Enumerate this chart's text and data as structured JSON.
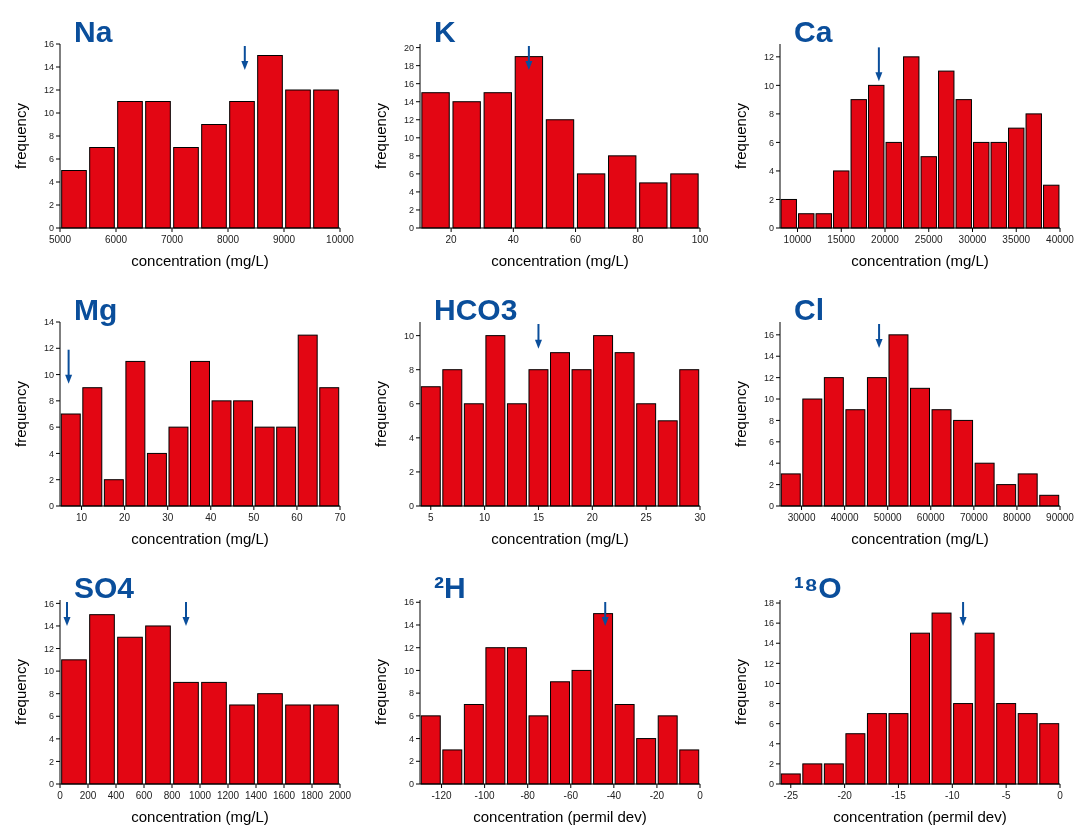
{
  "chart_data": [
    {
      "type": "histogram",
      "title": "Na",
      "xlabel": "concentration (mg/L)",
      "ylabel": "frequency",
      "bins": [
        5000,
        5500,
        6000,
        6500,
        7000,
        7500,
        8000,
        8500,
        9000,
        9500,
        10000
      ],
      "values": [
        5,
        7,
        11,
        11,
        7,
        9,
        11,
        15,
        12,
        12
      ],
      "color": "#e30613",
      "xlim": [
        5000,
        10000
      ],
      "xticks": [
        5000,
        6000,
        7000,
        8000,
        9000,
        10000
      ],
      "ylim": [
        0,
        16
      ],
      "yticks": [
        0,
        2,
        4,
        6,
        8,
        10,
        12,
        14,
        16
      ],
      "ref_lines": [
        {
          "axis": "x",
          "value": 8300,
          "color": "#0a4e9b"
        }
      ]
    },
    {
      "type": "histogram",
      "title": "K",
      "xlabel": "concentration (mg/L)",
      "ylabel": "frequency",
      "bins": [
        10,
        20,
        30,
        40,
        50,
        60,
        70,
        80,
        90,
        100
      ],
      "values": [
        15,
        14,
        15,
        19,
        12,
        6,
        8,
        5,
        6
      ],
      "color": "#e30613",
      "xlim": [
        10,
        100
      ],
      "xticks": [
        20,
        40,
        60,
        80,
        100
      ],
      "ylim": [
        0,
        20.4
      ],
      "yticks": [
        0,
        2,
        4,
        6,
        8,
        10,
        12,
        14,
        16,
        18,
        20
      ],
      "ref_lines": [
        {
          "axis": "x",
          "value": 45,
          "color": "#0a4e9b"
        }
      ]
    },
    {
      "type": "histogram",
      "title": "Ca",
      "xlabel": "concentration (mg/L)",
      "ylabel": "frequency",
      "bins": [
        8000,
        10000,
        12000,
        14000,
        16000,
        18000,
        20000,
        22000,
        24000,
        26000,
        28000,
        30000,
        32000,
        34000,
        36000,
        38000,
        40000
      ],
      "values": [
        2,
        1,
        1,
        4,
        9,
        10,
        6,
        12,
        5,
        11,
        9,
        6,
        6,
        7,
        8,
        3
      ],
      "color": "#e30613",
      "xlim": [
        8000,
        40000
      ],
      "xticks": [
        10000,
        15000,
        20000,
        25000,
        30000,
        35000,
        40000
      ],
      "ylim": [
        0,
        12.9
      ],
      "yticks": [
        0,
        2,
        4,
        6,
        8,
        10,
        12
      ],
      "ref_lines": [
        {
          "axis": "x",
          "value": 19300,
          "color": "#0a4e9b"
        }
      ]
    },
    {
      "type": "histogram",
      "title": "Mg",
      "xlabel": "concentration (mg/L)",
      "ylabel": "frequency",
      "bins": [
        5,
        10,
        15,
        20,
        25,
        30,
        35,
        40,
        45,
        50,
        55,
        60,
        65,
        70
      ],
      "values": [
        7,
        9,
        2,
        11,
        4,
        6,
        11,
        8,
        8,
        6,
        6,
        13,
        9
      ],
      "color": "#e30613",
      "xlim": [
        5,
        70
      ],
      "xticks": [
        10,
        20,
        30,
        40,
        50,
        60,
        70
      ],
      "ylim": [
        0,
        14
      ],
      "yticks": [
        0,
        2,
        4,
        6,
        8,
        10,
        12,
        14
      ],
      "ref_lines": [
        {
          "axis": "x",
          "value": 7,
          "color": "#0a4e9b"
        }
      ]
    },
    {
      "type": "histogram",
      "title": "HCO3",
      "xlabel": "concentration (mg/L)",
      "ylabel": "frequency",
      "bins": [
        4,
        6,
        8,
        10,
        12,
        14,
        16,
        18,
        20,
        22,
        24,
        26,
        28,
        30
      ],
      "values": [
        7,
        8,
        6,
        10,
        6,
        8,
        9,
        8,
        10,
        9,
        6,
        5,
        8
      ],
      "color": "#e30613",
      "xlim": [
        4,
        30
      ],
      "xticks": [
        5,
        10,
        15,
        20,
        25,
        30
      ],
      "ylim": [
        0,
        10.8
      ],
      "yticks": [
        0,
        2,
        4,
        6,
        8,
        10
      ],
      "ref_lines": [
        {
          "axis": "x",
          "value": 15,
          "color": "#0a4e9b"
        }
      ]
    },
    {
      "type": "histogram",
      "title": "Cl",
      "xlabel": "concentration (mg/L)",
      "ylabel": "frequency",
      "bins": [
        25000,
        30000,
        35000,
        40000,
        45000,
        50000,
        55000,
        60000,
        65000,
        70000,
        75000,
        80000,
        85000,
        90000
      ],
      "values": [
        3,
        10,
        12,
        9,
        12,
        16,
        11,
        9,
        8,
        4,
        2,
        3,
        1
      ],
      "color": "#e30613",
      "xlim": [
        25000,
        90000
      ],
      "xticks": [
        30000,
        40000,
        50000,
        60000,
        70000,
        80000,
        90000
      ],
      "ylim": [
        0,
        17.2
      ],
      "yticks": [
        0,
        2,
        4,
        6,
        8,
        10,
        12,
        14,
        16
      ],
      "ref_lines": [
        {
          "axis": "x",
          "value": 48000,
          "color": "#0a4e9b"
        }
      ]
    },
    {
      "type": "histogram",
      "title": "SO4",
      "xlabel": "concentration (mg/L)",
      "ylabel": "frequency",
      "bins": [
        0,
        200,
        400,
        600,
        800,
        1000,
        1200,
        1400,
        1600,
        1800,
        2000
      ],
      "values": [
        11,
        15,
        13,
        14,
        9,
        9,
        7,
        8,
        7,
        7
      ],
      "color": "#e30613",
      "xlim": [
        0,
        2000
      ],
      "xticks": [
        0,
        200,
        400,
        600,
        800,
        1000,
        1200,
        1400,
        1600,
        1800,
        2000
      ],
      "ylim": [
        0,
        16.3
      ],
      "yticks": [
        0,
        2,
        4,
        6,
        8,
        10,
        12,
        14,
        16
      ],
      "ref_lines": [
        {
          "axis": "x",
          "value": 50,
          "color": "#0a4e9b"
        },
        {
          "axis": "x",
          "value": 900,
          "color": "#0a4e9b"
        }
      ]
    },
    {
      "type": "histogram",
      "title": "²H",
      "xlabel": "concentration (permil dev)",
      "ylabel": "frequency",
      "bins": [
        -130,
        -120,
        -110,
        -100,
        -90,
        -80,
        -70,
        -60,
        -50,
        -40,
        -30,
        -20,
        -10,
        0
      ],
      "values": [
        6,
        3,
        7,
        12,
        12,
        6,
        9,
        10,
        15,
        7,
        4,
        6,
        3
      ],
      "color": "#e30613",
      "xlim": [
        -130,
        0
      ],
      "xticks": [
        -120,
        -100,
        -80,
        -60,
        -40,
        -20,
        0
      ],
      "ylim": [
        0,
        16.2
      ],
      "yticks": [
        0,
        2,
        4,
        6,
        8,
        10,
        12,
        14,
        16
      ],
      "ref_lines": [
        {
          "axis": "x",
          "value": -44,
          "color": "#0a4e9b"
        }
      ]
    },
    {
      "type": "histogram",
      "title": "¹⁸O",
      "xlabel": "concentration (permil dev)",
      "ylabel": "frequency",
      "bins": [
        -26,
        -24,
        -22,
        -20,
        -18,
        -16,
        -14,
        -12,
        -10,
        -8,
        -6,
        -4,
        -2,
        0
      ],
      "values": [
        1,
        2,
        2,
        5,
        7,
        7,
        15,
        17,
        8,
        15,
        8,
        7,
        6
      ],
      "color": "#e30613",
      "xlim": [
        -26,
        0
      ],
      "xticks": [
        -25,
        -20,
        -15,
        -10,
        -5,
        0
      ],
      "ylim": [
        0,
        18.3
      ],
      "yticks": [
        0,
        2,
        4,
        6,
        8,
        10,
        12,
        14,
        16,
        18
      ],
      "ref_lines": [
        {
          "axis": "x",
          "value": -9,
          "color": "#0a4e9b"
        }
      ]
    }
  ]
}
